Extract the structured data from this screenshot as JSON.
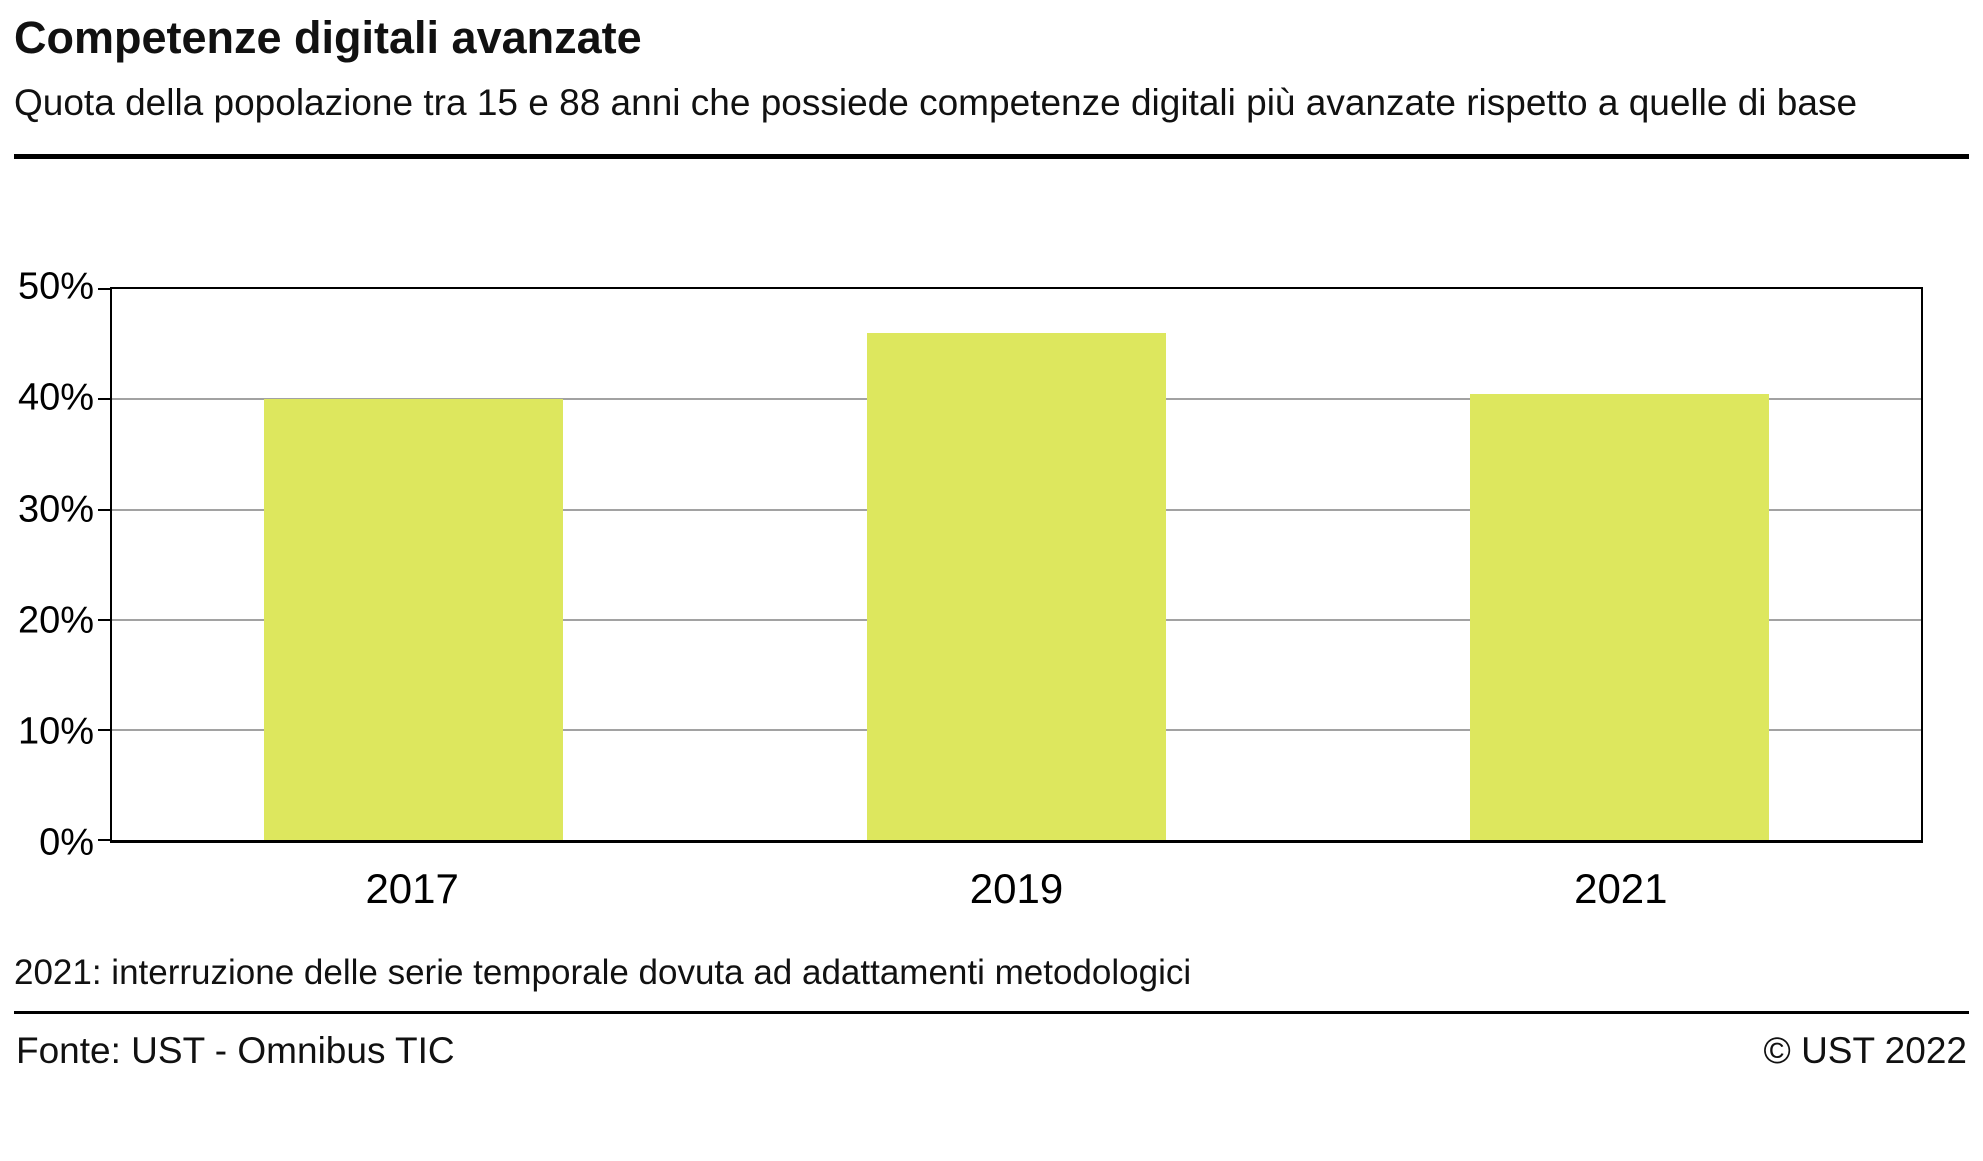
{
  "header": {
    "title": "Competenze digitali avanzate",
    "subtitle": "Quota della popolazione tra 15 e 88 anni che possiede competenze digitali più avanzate rispetto a quelle di base"
  },
  "chart_data": {
    "type": "bar",
    "categories": [
      "2017",
      "2019",
      "2021"
    ],
    "values": [
      40,
      46,
      40.5
    ],
    "title": "Competenze digitali avanzate",
    "xlabel": "",
    "ylabel": "",
    "ylim": [
      0,
      50
    ],
    "ytick_step": 10,
    "ytick_suffix": "%",
    "grid": true,
    "legend": "none",
    "bar_color": "#dde75e",
    "bar_width_pct": 16.5
  },
  "footnote": "2021: interruzione delle serie temporale dovuta ad adattamenti metodologici",
  "footer": {
    "source": "Fonte: UST - Omnibus TIC",
    "copyright": "© UST 2022"
  }
}
